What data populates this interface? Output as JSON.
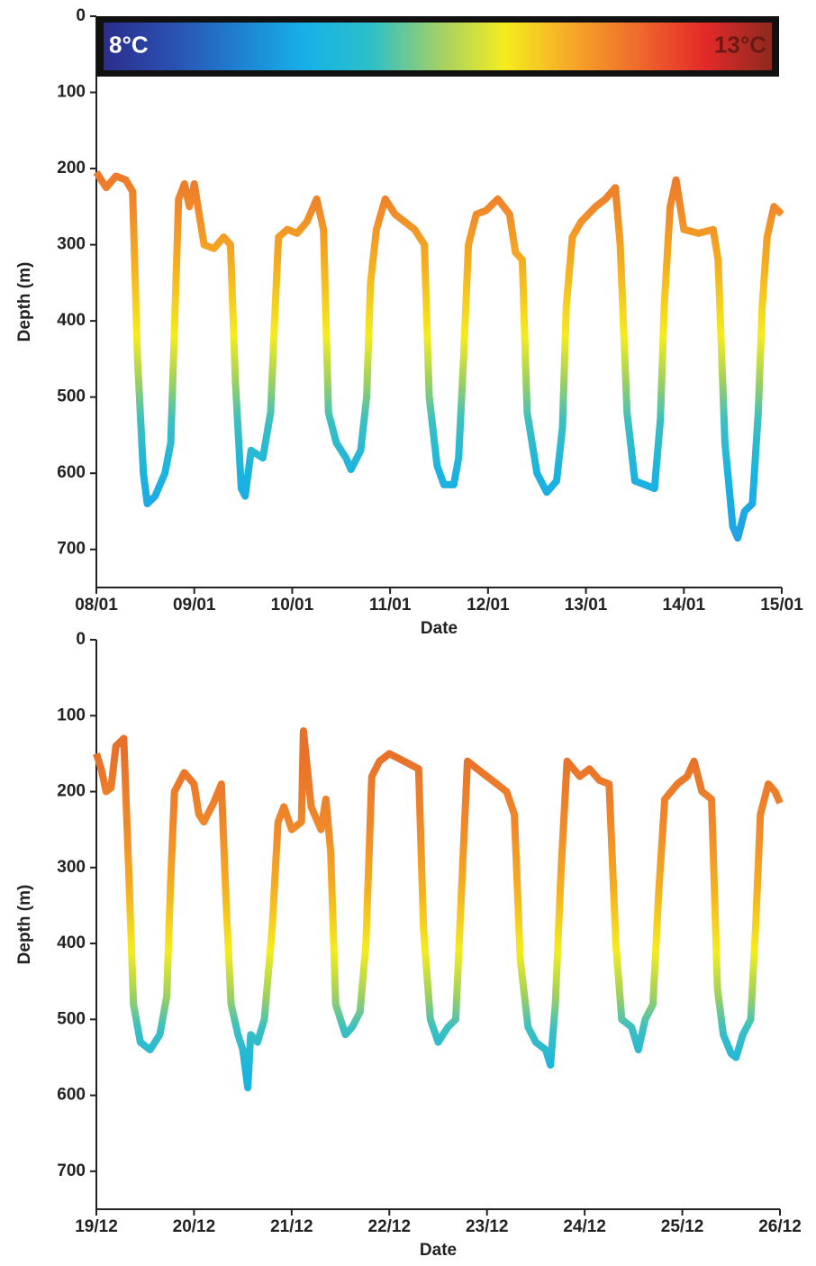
{
  "chart_data": [
    {
      "type": "line",
      "xlabel": "Date",
      "ylabel": "Depth (m)",
      "xlim": [
        0,
        7
      ],
      "ylim": [
        750,
        0
      ],
      "xticks": [
        {
          "value": 0,
          "label": "08/01"
        },
        {
          "value": 1,
          "label": "09/01"
        },
        {
          "value": 2,
          "label": "10/01"
        },
        {
          "value": 3,
          "label": "11/01"
        },
        {
          "value": 4,
          "label": "12/01"
        },
        {
          "value": 5,
          "label": "13/01"
        },
        {
          "value": 6,
          "label": "14/01"
        },
        {
          "value": 7,
          "label": "15/01"
        }
      ],
      "yticks": [
        0,
        100,
        200,
        300,
        400,
        500,
        600,
        700
      ],
      "colorbar": {
        "min_label": "8°C",
        "max_label": "13°C",
        "colors": [
          "#2b2d8c",
          "#2a4fb0",
          "#1f7fd0",
          "#17b0e8",
          "#2cc0c8",
          "#9ed068",
          "#f5ec1e",
          "#f6a828",
          "#ef6a2c",
          "#e42a2a",
          "#8c2a1e"
        ]
      },
      "color_scale": [
        {
          "value": 150,
          "color": "#e8662a"
        },
        {
          "value": 250,
          "color": "#f0882a"
        },
        {
          "value": 330,
          "color": "#f5b020"
        },
        {
          "value": 420,
          "color": "#f5ec1e"
        },
        {
          "value": 480,
          "color": "#9cd060"
        },
        {
          "value": 530,
          "color": "#3cc0c0"
        },
        {
          "value": 600,
          "color": "#1ab4e0"
        },
        {
          "value": 690,
          "color": "#20a0e8"
        }
      ],
      "x": [
        0,
        0.1,
        0.2,
        0.3,
        0.37,
        0.42,
        0.48,
        0.52,
        0.6,
        0.7,
        0.76,
        0.8,
        0.84,
        0.9,
        0.95,
        1.0,
        1.05,
        1.1,
        1.2,
        1.3,
        1.37,
        1.42,
        1.48,
        1.52,
        1.58,
        1.7,
        1.78,
        1.82,
        1.86,
        1.95,
        2.05,
        2.15,
        2.25,
        2.32,
        2.37,
        2.45,
        2.55,
        2.6,
        2.7,
        2.76,
        2.8,
        2.86,
        2.95,
        3.05,
        3.15,
        3.25,
        3.35,
        3.4,
        3.48,
        3.55,
        3.65,
        3.7,
        3.75,
        3.8,
        3.88,
        3.98,
        4.1,
        4.22,
        4.28,
        4.35,
        4.4,
        4.5,
        4.6,
        4.7,
        4.76,
        4.8,
        4.86,
        4.95,
        5.1,
        5.2,
        5.3,
        5.35,
        5.42,
        5.5,
        5.6,
        5.7,
        5.76,
        5.8,
        5.86,
        5.92,
        6.0,
        6.15,
        6.3,
        6.35,
        6.42,
        6.5,
        6.55,
        6.62,
        6.7,
        6.76,
        6.8,
        6.85,
        6.92,
        7.0
      ],
      "values": [
        205,
        225,
        210,
        215,
        230,
        450,
        600,
        640,
        630,
        600,
        560,
        400,
        240,
        220,
        250,
        220,
        260,
        300,
        305,
        290,
        300,
        480,
        620,
        630,
        570,
        580,
        520,
        400,
        290,
        280,
        285,
        270,
        240,
        280,
        520,
        560,
        580,
        595,
        570,
        500,
        350,
        280,
        240,
        260,
        270,
        280,
        300,
        500,
        590,
        615,
        615,
        580,
        450,
        300,
        260,
        255,
        240,
        260,
        310,
        320,
        520,
        600,
        625,
        610,
        540,
        380,
        290,
        270,
        250,
        240,
        225,
        300,
        520,
        610,
        615,
        620,
        530,
        380,
        250,
        215,
        280,
        285,
        280,
        320,
        560,
        670,
        685,
        650,
        640,
        520,
        380,
        290,
        250,
        260
      ]
    },
    {
      "type": "line",
      "xlabel": "Date",
      "ylabel": "Depth (m)",
      "xlim": [
        0,
        7
      ],
      "ylim": [
        750,
        0
      ],
      "xticks": [
        {
          "value": 0,
          "label": "19/12"
        },
        {
          "value": 1,
          "label": "20/12"
        },
        {
          "value": 2,
          "label": "21/12"
        },
        {
          "value": 3,
          "label": "22/12"
        },
        {
          "value": 4,
          "label": "23/12"
        },
        {
          "value": 5,
          "label": "24/12"
        },
        {
          "value": 6,
          "label": "25/12"
        },
        {
          "value": 7,
          "label": "26/12"
        }
      ],
      "yticks": [
        0,
        100,
        200,
        300,
        400,
        500,
        600,
        700
      ],
      "color_scale": [
        {
          "value": 150,
          "color": "#e8702a"
        },
        {
          "value": 250,
          "color": "#f08a2a"
        },
        {
          "value": 330,
          "color": "#f5b020"
        },
        {
          "value": 410,
          "color": "#f5ec1e"
        },
        {
          "value": 470,
          "color": "#9cd060"
        },
        {
          "value": 510,
          "color": "#3cc0c0"
        },
        {
          "value": 570,
          "color": "#1ab4e0"
        }
      ],
      "x": [
        0,
        0.05,
        0.1,
        0.15,
        0.2,
        0.28,
        0.33,
        0.38,
        0.45,
        0.55,
        0.65,
        0.72,
        0.76,
        0.8,
        0.9,
        1.0,
        1.05,
        1.1,
        1.2,
        1.28,
        1.33,
        1.38,
        1.45,
        1.5,
        1.55,
        1.58,
        1.65,
        1.72,
        1.8,
        1.86,
        1.92,
        2.0,
        2.1,
        2.12,
        2.2,
        2.3,
        2.35,
        2.4,
        2.45,
        2.55,
        2.62,
        2.7,
        2.76,
        2.82,
        2.9,
        3.0,
        3.15,
        3.3,
        3.35,
        3.42,
        3.5,
        3.6,
        3.68,
        3.75,
        3.8,
        3.9,
        4.0,
        4.1,
        4.2,
        4.28,
        4.34,
        4.42,
        4.5,
        4.6,
        4.65,
        4.7,
        4.76,
        4.82,
        4.95,
        5.05,
        5.15,
        5.25,
        5.32,
        5.38,
        5.48,
        5.55,
        5.62,
        5.7,
        5.76,
        5.82,
        5.95,
        6.05,
        6.12,
        6.2,
        6.3,
        6.36,
        6.42,
        6.5,
        6.55,
        6.62,
        6.7,
        6.75,
        6.8,
        6.88,
        6.95,
        7.0
      ],
      "values": [
        150,
        170,
        200,
        195,
        140,
        130,
        300,
        480,
        530,
        540,
        520,
        470,
        320,
        200,
        175,
        190,
        230,
        240,
        215,
        190,
        350,
        480,
        520,
        540,
        590,
        520,
        530,
        500,
        380,
        240,
        220,
        250,
        240,
        120,
        220,
        250,
        210,
        280,
        480,
        520,
        510,
        490,
        400,
        180,
        160,
        150,
        160,
        170,
        380,
        500,
        530,
        510,
        500,
        300,
        160,
        170,
        180,
        190,
        200,
        230,
        420,
        510,
        530,
        540,
        560,
        480,
        300,
        160,
        180,
        170,
        185,
        190,
        400,
        500,
        510,
        540,
        500,
        480,
        330,
        210,
        190,
        180,
        160,
        200,
        210,
        460,
        520,
        545,
        550,
        520,
        500,
        380,
        230,
        190,
        200,
        215
      ]
    }
  ]
}
